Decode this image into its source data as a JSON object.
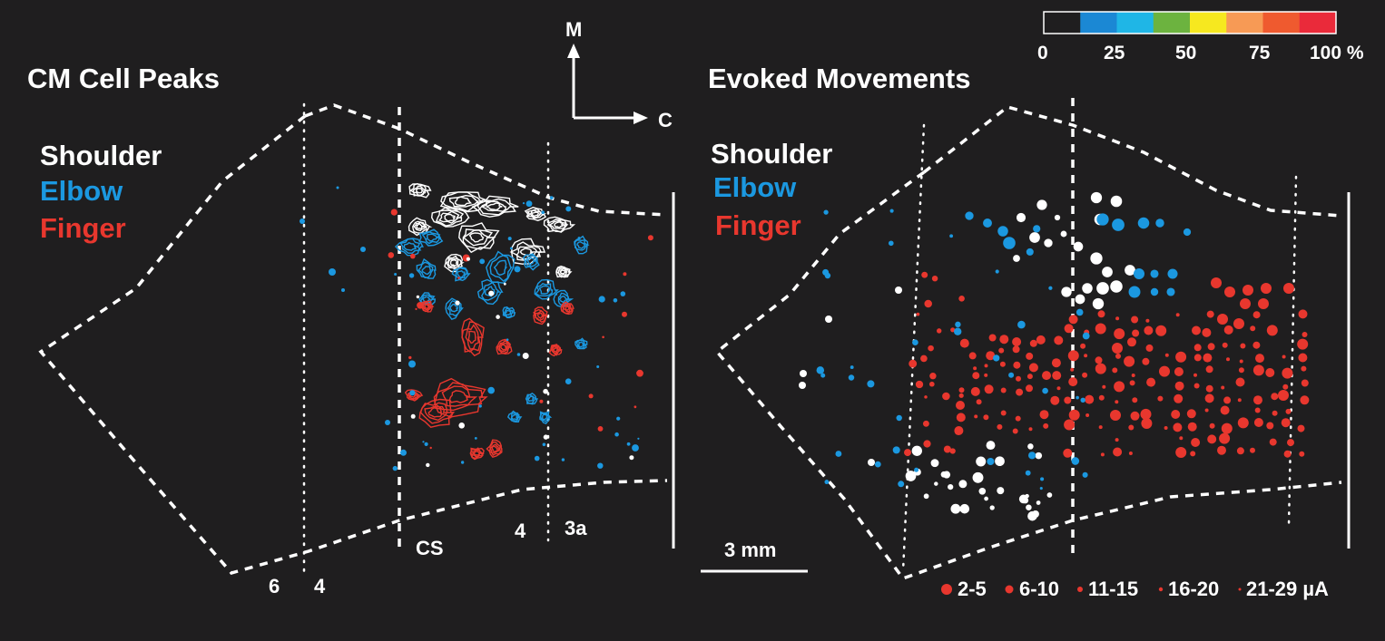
{
  "panels": {
    "left": {
      "title": "CM Cell Peaks",
      "legend": [
        "Shoulder",
        "Elbow",
        "Finger"
      ],
      "area_labels": {
        "six": "6",
        "four_bottom": "4",
        "cs": "CS",
        "four": "4",
        "three_a": "3a"
      }
    },
    "right": {
      "title": "Evoked Movements",
      "legend": [
        "Shoulder",
        "Elbow",
        "Finger"
      ],
      "scale_bar": "3 mm"
    }
  },
  "orientation": {
    "medial": "M",
    "caudal": "C"
  },
  "colorbar": {
    "tick_labels": [
      "0",
      "25",
      "50",
      "75",
      "100 %"
    ],
    "colors": [
      "#1f1e1f",
      "#1b88d4",
      "#1fb6e6",
      "#6cb33f",
      "#f6e81f",
      "#f79a55",
      "#ef5a2f",
      "#ea2a3a"
    ]
  },
  "size_legend": {
    "items": [
      "2-5",
      "6-10",
      "11-15",
      "16-20",
      "21-29 µA"
    ]
  },
  "colors": {
    "shoulder": "#ffffff",
    "elbow": "#1b98e0",
    "finger": "#e8372e",
    "background": "#1f1e1f"
  }
}
